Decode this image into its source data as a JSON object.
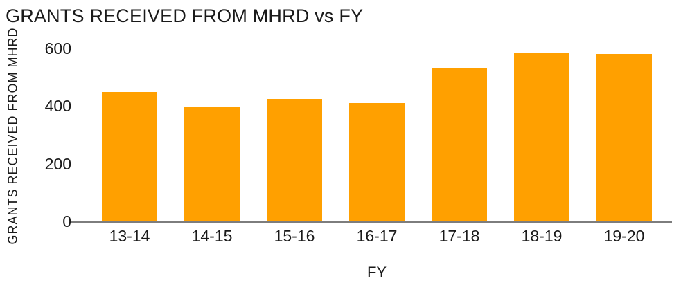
{
  "chart_data": {
    "type": "bar",
    "title": "GRANTS RECEIVED FROM MHRD vs FY",
    "xlabel": "FY",
    "ylabel": "GRANTS RECEIVED FROM MHRD",
    "categories": [
      "13-14",
      "14-15",
      "15-16",
      "16-17",
      "17-18",
      "18-19",
      "19-20"
    ],
    "values": [
      450,
      395,
      425,
      410,
      530,
      585,
      580
    ],
    "yticks": [
      0,
      200,
      400,
      600
    ],
    "ylim": [
      0,
      600
    ],
    "grid": false,
    "legend": false,
    "colors": {
      "bar": "#FFA000",
      "axis_line": "#7d7d7d",
      "text": "#1A1A1A"
    }
  }
}
